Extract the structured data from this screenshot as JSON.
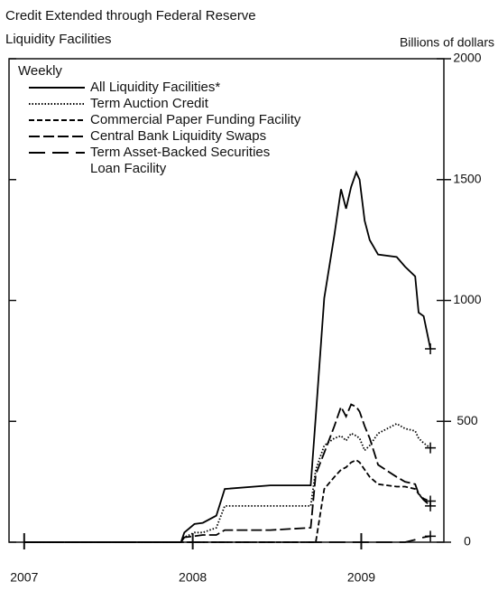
{
  "chart_data": {
    "type": "line",
    "title": "Credit Extended through Federal Reserve",
    "subtitle": "Liquidity Facilities",
    "y_axis_label": "Billions of dollars",
    "legend_title": "Weekly",
    "x": [
      2007,
      2007.93,
      2007.95,
      2008.01,
      2008.06,
      2008.14,
      2008.19,
      2008.46,
      2008.7,
      2008.73,
      2008.78,
      2008.84,
      2008.88,
      2008.91,
      2008.94,
      2008.97,
      2008.99,
      2009.02,
      2009.05,
      2009.1,
      2009.21,
      2009.26,
      2009.32,
      2009.34,
      2009.37,
      2009.41
    ],
    "series": [
      {
        "name": "All Liquidity Facilities*",
        "color": "#000000",
        "style": "solid",
        "values": [
          0,
          0,
          40,
          75,
          80,
          110,
          220,
          235,
          235,
          520,
          1010,
          1270,
          1460,
          1380,
          1470,
          1530,
          1500,
          1330,
          1250,
          1190,
          1180,
          1140,
          1100,
          950,
          935,
          800
        ]
      },
      {
        "name": "Term Auction Credit",
        "color": "#000000",
        "style": "dotted",
        "values": [
          0,
          0,
          20,
          40,
          40,
          60,
          150,
          150,
          150,
          300,
          400,
          430,
          440,
          420,
          450,
          440,
          430,
          380,
          400,
          450,
          490,
          470,
          460,
          430,
          410,
          390
        ]
      },
      {
        "name": "Commercial Paper Funding Facility",
        "color": "#000000",
        "style": "dashed",
        "values": [
          0,
          0,
          0,
          0,
          0,
          0,
          0,
          0,
          0,
          0,
          220,
          270,
          300,
          310,
          330,
          340,
          330,
          300,
          270,
          240,
          230,
          230,
          220,
          200,
          180,
          170
        ]
      },
      {
        "name": "Central Bank Liquidity Swaps",
        "color": "#000000",
        "style": "longdash",
        "values": [
          0,
          0,
          20,
          25,
          30,
          30,
          50,
          50,
          60,
          280,
          370,
          480,
          560,
          520,
          570,
          560,
          540,
          480,
          430,
          320,
          270,
          250,
          240,
          200,
          175,
          150
        ]
      },
      {
        "name": "Term Asset-Backed Securities Loan Facility",
        "color": "#000000",
        "style": "sparse",
        "values": [
          0,
          0,
          0,
          0,
          0,
          0,
          0,
          0,
          0,
          0,
          0,
          0,
          0,
          0,
          0,
          0,
          0,
          0,
          0,
          0,
          0,
          0,
          10,
          15,
          20,
          25
        ]
      }
    ],
    "xlim": [
      2006.91,
      2009.49
    ],
    "xticks": [
      2007,
      2008,
      2009
    ],
    "ylim": [
      0,
      2000
    ],
    "yticks": [
      0,
      500,
      1000,
      1500,
      2000
    ],
    "grid": false
  }
}
